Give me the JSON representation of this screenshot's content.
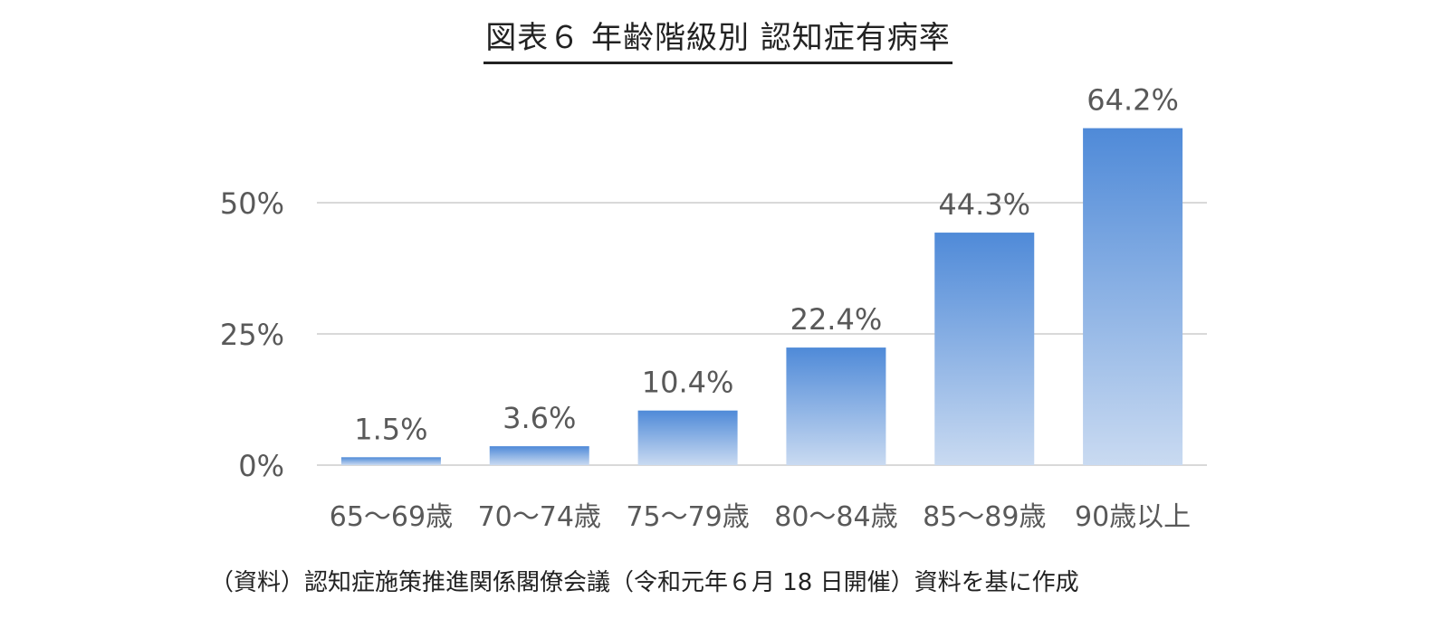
{
  "chart_data": {
    "type": "bar",
    "title": "図表６ 年齢階級別 認知症有病率",
    "categories": [
      "65～69歳",
      "70～74歳",
      "75～79歳",
      "80～84歳",
      "85～89歳",
      "90歳以上"
    ],
    "values": [
      1.5,
      3.6,
      10.4,
      22.4,
      44.3,
      64.2
    ],
    "value_labels": [
      "1.5%",
      "3.6%",
      "10.4%",
      "22.4%",
      "44.3%",
      "64.2%"
    ],
    "y_ticks": [
      0,
      25,
      50
    ],
    "y_tick_labels": [
      "0%",
      "25%",
      "50%"
    ],
    "xlabel": "",
    "ylabel": "",
    "ylim": [
      0,
      64.2
    ],
    "grid": true,
    "legend": "none",
    "colors": {
      "bar_top": "#4f8ad8",
      "bar_bottom": "#c9daf1",
      "gridline": "#d9d9d9",
      "label_text": "#595959"
    }
  },
  "source_note": "（資料）認知症施策推進関係閣僚会議（令和元年６月 18 日開催）資料を基に作成"
}
